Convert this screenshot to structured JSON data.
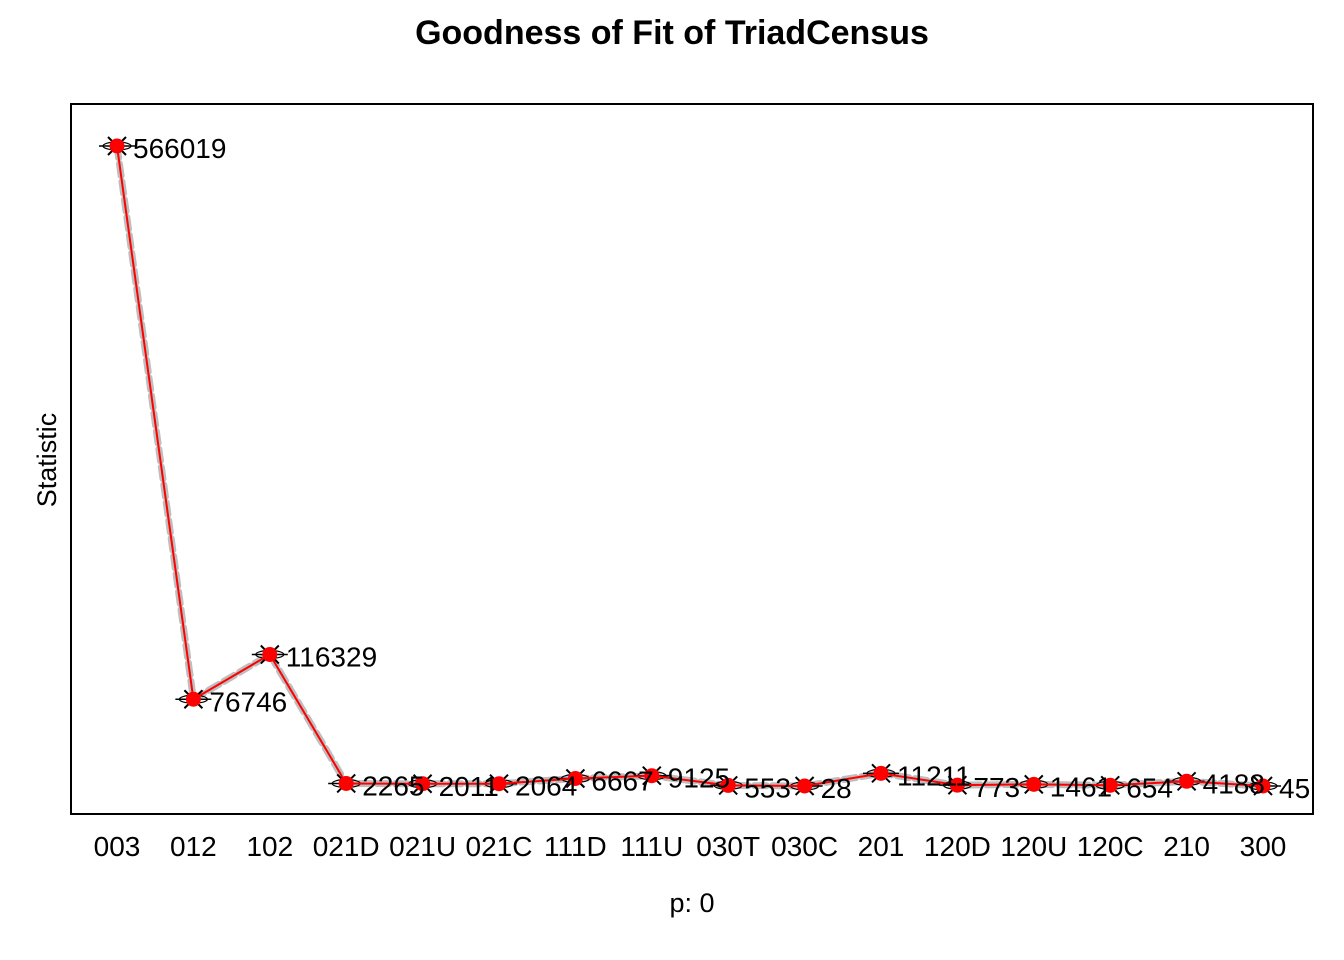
{
  "chart_data": {
    "type": "line",
    "title": "Goodness of Fit of TriadCensus",
    "xlabel": "p: 0",
    "ylabel": "Statistic",
    "categories": [
      "003",
      "012",
      "102",
      "021D",
      "021U",
      "021C",
      "111D",
      "111U",
      "030T",
      "030C",
      "201",
      "120D",
      "120U",
      "120C",
      "210",
      "300"
    ],
    "ylim": [
      -5000,
      592000
    ],
    "grid": false,
    "series": [
      {
        "values": [
          566019,
          76746,
          116329,
          2265,
          2011,
          2064,
          6667,
          9125,
          553,
          28,
          11211,
          773,
          1461,
          654,
          4188,
          45
        ],
        "color": "#ff0000",
        "marker": "filled-circle"
      }
    ],
    "simulated_band_color": "#bebebe",
    "simulated_marker": "cross",
    "data_labels": [
      "566019",
      "76746",
      "116329",
      "2265",
      "2011",
      "2064",
      "6667",
      "9125",
      "553",
      "28",
      "11211",
      "773",
      "1461",
      "654",
      "4188",
      "45"
    ]
  }
}
